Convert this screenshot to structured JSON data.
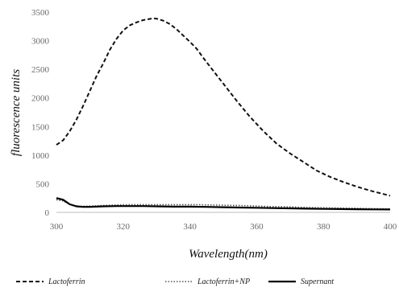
{
  "chart_data": {
    "type": "line",
    "title": "",
    "xlabel": "Wavelength(nm)",
    "ylabel": "fluorescence units",
    "xlim": [
      300,
      400
    ],
    "ylim": [
      0,
      3500
    ],
    "xticks": [
      300,
      320,
      340,
      360,
      380,
      400
    ],
    "yticks": [
      0,
      500,
      1000,
      1500,
      2000,
      2500,
      3000,
      3500
    ],
    "grid": false,
    "legend_position": "bottom",
    "series": [
      {
        "name": "Lactoferrin",
        "style": "dashed",
        "color": "#111111",
        "x": [
          300,
          302,
          304,
          306,
          308,
          310,
          312,
          314,
          316,
          318,
          320,
          322,
          324,
          326,
          328,
          329,
          330,
          332,
          334,
          336,
          338,
          340,
          342,
          344,
          346,
          348,
          350,
          354,
          358,
          362,
          366,
          370,
          374,
          378,
          382,
          386,
          390,
          394,
          398,
          400
        ],
        "y": [
          1180,
          1260,
          1420,
          1620,
          1860,
          2120,
          2380,
          2600,
          2840,
          3030,
          3180,
          3270,
          3320,
          3360,
          3380,
          3390,
          3385,
          3350,
          3290,
          3200,
          3090,
          2980,
          2860,
          2700,
          2550,
          2400,
          2250,
          1950,
          1670,
          1420,
          1200,
          1030,
          880,
          730,
          620,
          530,
          450,
          380,
          320,
          290
        ]
      },
      {
        "name": "Lactoferrin+NP",
        "style": "dotted",
        "color": "#555555",
        "x": [
          300,
          302,
          304,
          306,
          308,
          310,
          314,
          318,
          322,
          326,
          330,
          334,
          338,
          342,
          346,
          350,
          355,
          360,
          365,
          370,
          375,
          380,
          385,
          390,
          395,
          400
        ],
        "y": [
          220,
          200,
          140,
          110,
          105,
          110,
          120,
          130,
          135,
          135,
          135,
          135,
          135,
          135,
          130,
          125,
          120,
          110,
          100,
          95,
          85,
          80,
          75,
          70,
          65,
          60
        ]
      },
      {
        "name": "Supernant",
        "style": "solid",
        "color": "#000000",
        "x": [
          300,
          302,
          304,
          306,
          308,
          310,
          314,
          318,
          322,
          326,
          330,
          335,
          340,
          345,
          350,
          355,
          360,
          365,
          370,
          375,
          380,
          385,
          390,
          395,
          400
        ],
        "y": [
          250,
          220,
          140,
          105,
          95,
          95,
          105,
          110,
          110,
          110,
          105,
          100,
          100,
          95,
          90,
          85,
          80,
          75,
          70,
          65,
          60,
          58,
          55,
          52,
          50
        ]
      }
    ]
  }
}
